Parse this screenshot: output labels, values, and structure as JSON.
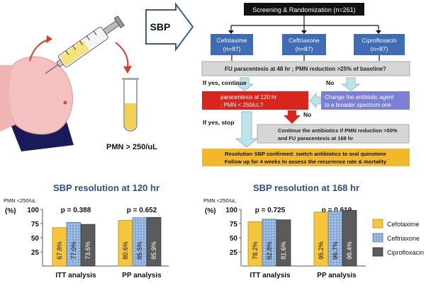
{
  "flowchart": {
    "sbp_label": "SBP",
    "pmn_label": "PMN > 250/uL",
    "screening": "Screening & Randomization (n=261)",
    "arms": [
      {
        "name": "Cefotaxime",
        "n": "(n=87)"
      },
      {
        "name": "Ceftriaxone",
        "n": "(n=87)"
      },
      {
        "name": "Ciprofloxacin",
        "n": "(n=87)"
      }
    ],
    "fu_question": "FU paracentesis at 48 hr ; PMN reduction >25% of baseline?",
    "if_yes_continue": "If yes, continue",
    "no_label_1": "No",
    "paracentesis_120_line1": "paracentesis at 120 hr",
    "paracentesis_120_line2": "; PMN < 250/uL?",
    "change_line1": "Change the antibiotic agent",
    "change_line2": "to a broader spectrum one",
    "no_label_2": "No",
    "if_yes_stop": "If yes, stop",
    "continue_line1": "Continue the antibiotics if PMN reduction >50%",
    "continue_line2": "and FU paracentesis at 168 hr",
    "resolution_line1": "Resolution SBP confirmed: switch antibiotics to oral quinolone",
    "resolution_line2": "Follow up for 4 weeks to assess the recurrence rate & mortality"
  },
  "legend": [
    {
      "name": "Cefotaxime",
      "color": "#f5c53a"
    },
    {
      "name": "Ceftriaxone",
      "color": "#8fb1dc"
    },
    {
      "name": "Ciprofloxacin",
      "color": "#5b5b5b"
    }
  ],
  "chart_data": [
    {
      "type": "bar",
      "title": "SBP resolution at 120 hr",
      "ylabel_top": "PMN <250/uL",
      "ylabel_unit": "(%)",
      "ylim": [
        0,
        100
      ],
      "yticks": [
        25,
        50,
        75,
        100
      ],
      "categories": [
        "ITT analysis",
        "PP analysis"
      ],
      "pvalues": [
        "p = 0.388",
        "p = 0.652"
      ],
      "series": [
        {
          "name": "Cefotaxime",
          "values": [
            67.8,
            80.6
          ],
          "labels": [
            "67.8%",
            "80.6%"
          ]
        },
        {
          "name": "Ceftriaxone",
          "values": [
            77.0,
            85.5
          ],
          "labels": [
            "77.0%",
            "85.5%"
          ]
        },
        {
          "name": "Ciprofloxacin",
          "values": [
            73.6,
            85.9
          ],
          "labels": [
            "73.6%",
            "85.9%"
          ]
        }
      ]
    },
    {
      "type": "bar",
      "title": "SBP resolution at 168 hr",
      "ylabel_top": "PMN <250/uL",
      "ylabel_unit": "(%)",
      "ylim": [
        0,
        100
      ],
      "yticks": [
        25,
        50,
        75,
        100
      ],
      "categories": [
        "ITT analysis",
        "PP analysis"
      ],
      "pvalues": [
        "p = 0.725",
        "p = 0.619"
      ],
      "series": [
        {
          "name": "Cefotaxime",
          "values": [
            78.2,
            95.2
          ],
          "labels": [
            "78.2%",
            "95.2%"
          ]
        },
        {
          "name": "Ceftriaxone",
          "values": [
            82.8,
            96.7
          ],
          "labels": [
            "82.8%",
            "96.7%"
          ]
        },
        {
          "name": "Ciprofloxacin",
          "values": [
            81.6,
            98.4
          ],
          "labels": [
            "81.6%",
            "98.4%"
          ]
        }
      ]
    }
  ]
}
